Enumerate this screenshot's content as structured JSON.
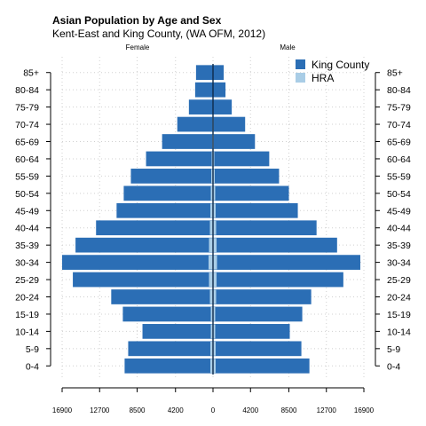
{
  "chart_data": {
    "type": "bar",
    "orientation": "horizontal",
    "title": "Asian Population by Age and Sex",
    "subtitle": "Kent-East and King County, (WA OFM, 2012)",
    "left_label": "Female",
    "right_label": "Male",
    "categories": [
      "0-4",
      "5-9",
      "10-14",
      "15-19",
      "20-24",
      "25-29",
      "30-34",
      "35-39",
      "40-44",
      "45-49",
      "50-54",
      "55-59",
      "60-64",
      "65-69",
      "70-74",
      "75-79",
      "80-84",
      "85+"
    ],
    "series": [
      {
        "name": "King County",
        "color": "#2b6eb5",
        "female": [
          9900,
          9500,
          7900,
          10100,
          11400,
          15700,
          16900,
          15400,
          13100,
          10800,
          10000,
          9200,
          7500,
          5700,
          4000,
          2700,
          2000,
          1900
        ],
        "male": [
          10800,
          9900,
          8600,
          10000,
          11000,
          14600,
          16500,
          13900,
          11600,
          9500,
          8500,
          7400,
          6300,
          4700,
          3600,
          2100,
          1400,
          1200
        ]
      },
      {
        "name": "HRA",
        "color": "#a9cde6",
        "female": [
          300,
          300,
          250,
          250,
          350,
          450,
          500,
          450,
          350,
          300,
          250,
          200,
          150,
          100,
          80,
          50,
          40,
          40
        ],
        "male": [
          300,
          300,
          250,
          250,
          350,
          400,
          450,
          400,
          350,
          300,
          250,
          200,
          150,
          100,
          80,
          50,
          40,
          40
        ]
      }
    ],
    "xtick_labels": [
      "16900",
      "12700",
      "8500",
      "4200",
      "0",
      "4200",
      "8500",
      "12700",
      "16900"
    ],
    "xtick_values": [
      -16900,
      -12700,
      -8500,
      -4200,
      0,
      4200,
      8500,
      12700,
      16900
    ],
    "xlim": [
      -16900,
      16900
    ],
    "grid": true,
    "legend_position": "top-right"
  }
}
